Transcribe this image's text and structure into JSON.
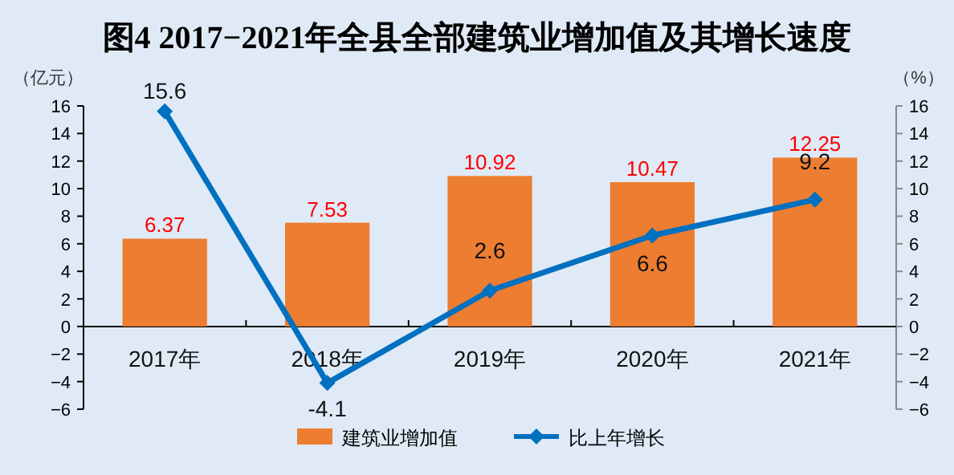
{
  "chart_data": {
    "type": "bar",
    "title": "图4 2017−2021年全县全部建筑业增加值及其增长速度",
    "ylabel": "（亿元）",
    "y2label": "（%）",
    "categories": [
      "2017年",
      "2018年",
      "2019年",
      "2020年",
      "2021年"
    ],
    "series": [
      {
        "name": "建筑业增加值",
        "color": "#ed7d31",
        "values": [
          6.37,
          7.53,
          10.92,
          10.47,
          12.25
        ]
      },
      {
        "name": "比上年增长",
        "type": "line",
        "axis": "y2",
        "color": "#0070c0",
        "marker": "diamond",
        "values": [
          15.6,
          -4.1,
          2.6,
          6.6,
          9.2
        ]
      }
    ],
    "ylim": [
      -6,
      16
    ],
    "yticks": [
      -6,
      -4,
      -2,
      0,
      2,
      4,
      6,
      8,
      10,
      12,
      14,
      16
    ],
    "y2lim": [
      -6,
      16
    ],
    "y2ticks": [
      -6,
      -4,
      -2,
      0,
      2,
      4,
      6,
      8,
      10,
      12,
      14,
      16
    ],
    "data_labels": true,
    "legend": "bottom",
    "grid": false
  }
}
